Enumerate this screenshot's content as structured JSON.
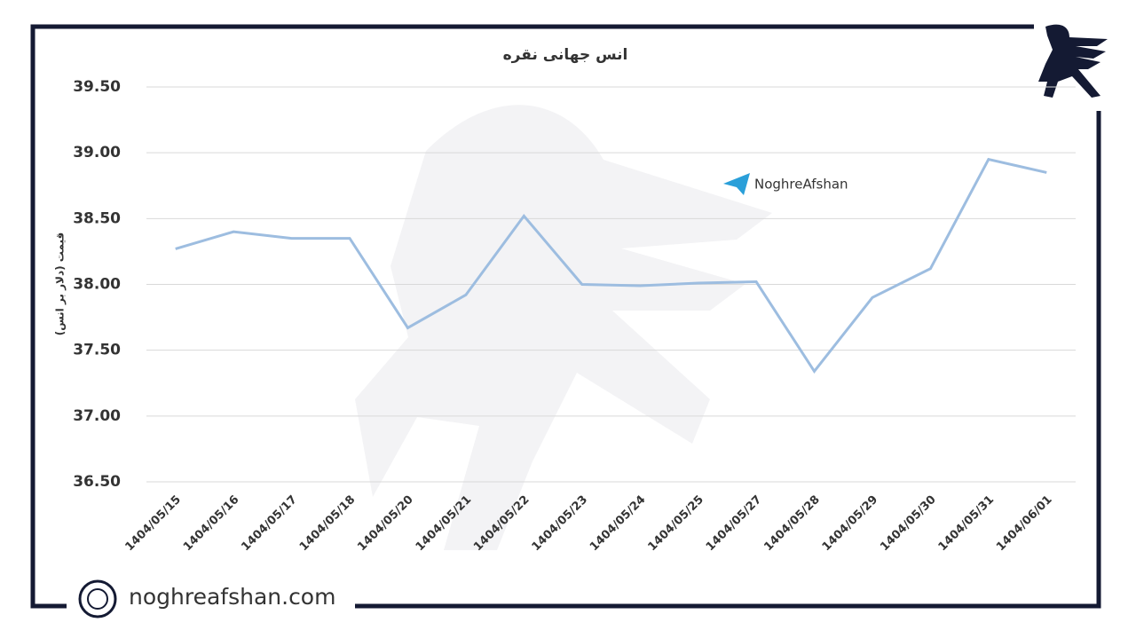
{
  "chart_data": {
    "type": "line",
    "title": "انس جهانی نقره",
    "y_label": "قیمت (دلار بر انس)",
    "categories": [
      "1404/05/15",
      "1404/05/16",
      "1404/05/17",
      "1404/05/18",
      "1404/05/20",
      "1404/05/21",
      "1404/05/22",
      "1404/05/23",
      "1404/05/24",
      "1404/05/25",
      "1404/05/27",
      "1404/05/28",
      "1404/05/29",
      "1404/05/30",
      "1404/05/31",
      "1404/06/01"
    ],
    "series": [
      {
        "color": "#9dbde0",
        "values": [
          38.27,
          38.4,
          38.35,
          38.35,
          37.67,
          37.92,
          38.52,
          38.0,
          37.99,
          38.01,
          38.02,
          37.34,
          37.9,
          38.12,
          38.95,
          38.85
        ]
      }
    ],
    "ylim": [
      36.5,
      39.5
    ],
    "yticks": [
      {
        "value": 36.5,
        "label": "36.50"
      },
      {
        "value": 37,
        "label": "37.00"
      },
      {
        "value": 37.5,
        "label": "37.50"
      },
      {
        "value": 38,
        "label": "38.00"
      },
      {
        "value": 38.5,
        "label": "38.50"
      },
      {
        "value": 39,
        "label": "39.00"
      },
      {
        "value": 39.5,
        "label": "39.50"
      }
    ],
    "grid": true
  },
  "branding": {
    "telegram": "NoghreAfshan",
    "website": "noghreafshan.com"
  }
}
